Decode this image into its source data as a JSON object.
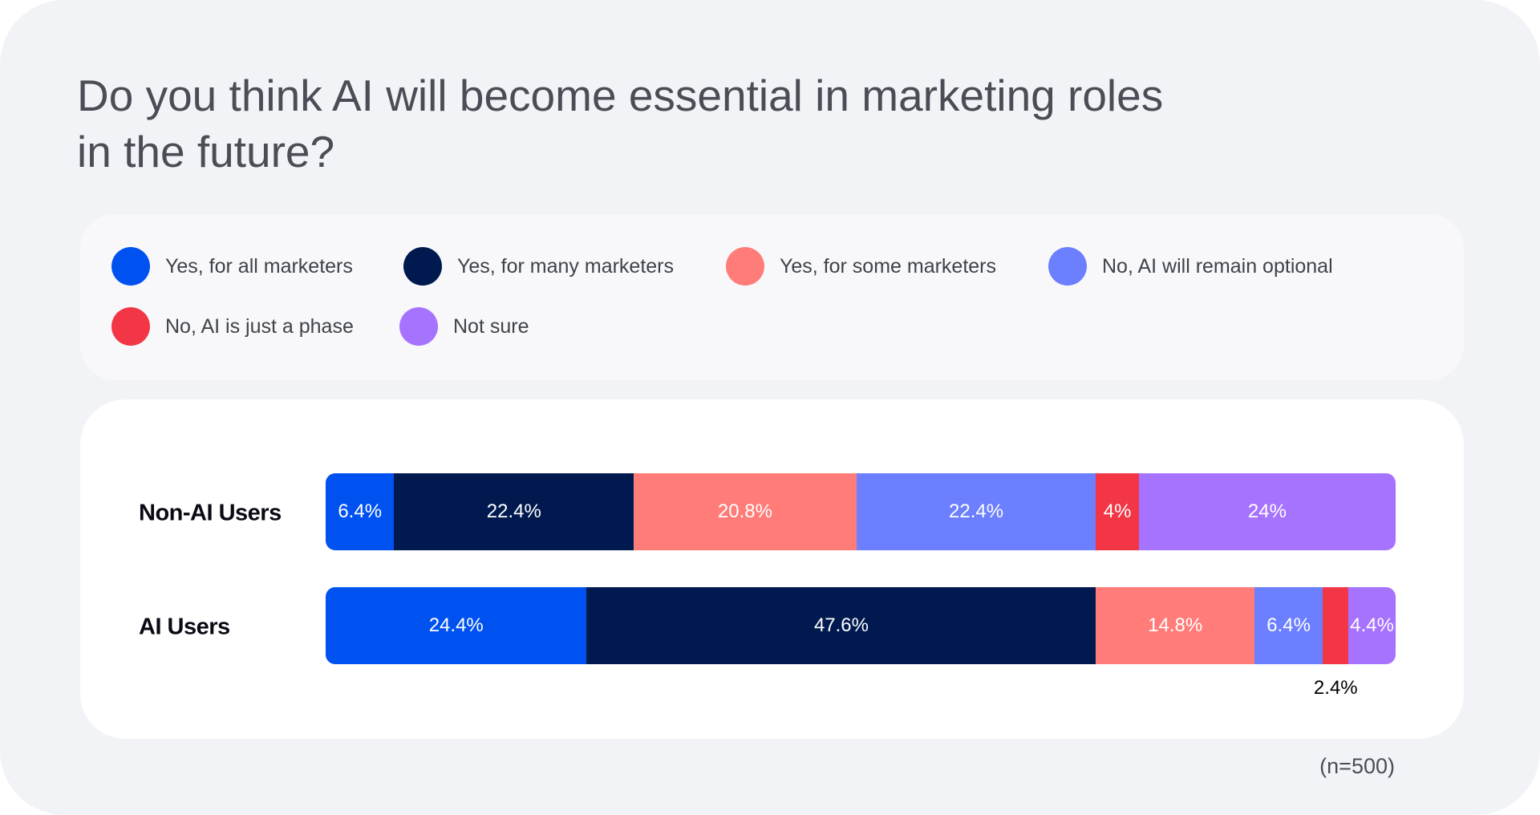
{
  "chart_data": {
    "type": "bar",
    "orientation": "horizontal",
    "stacked": true,
    "title": "Do you think AI will become essential in marketing roles in the future?",
    "title_lines": [
      "Do you think AI will become essential in marketing roles",
      "in the future?"
    ],
    "categories": [
      "Non-AI Users",
      "AI Users"
    ],
    "series": [
      {
        "name": "Yes, for all marketers",
        "color": "#0052f0",
        "values": [
          6.4,
          24.4
        ],
        "labels": [
          "6.4%",
          "24.4%"
        ]
      },
      {
        "name": "Yes, for many marketers",
        "color": "#001a50",
        "values": [
          22.4,
          47.6
        ],
        "labels": [
          "22.4%",
          "47.6%"
        ]
      },
      {
        "name": "Yes, for some marketers",
        "color": "#ff7c78",
        "values": [
          20.8,
          14.8
        ],
        "labels": [
          "20.8%",
          "14.8%"
        ]
      },
      {
        "name": "No, AI will remain optional",
        "color": "#6b7fff",
        "values": [
          22.4,
          6.4
        ],
        "labels": [
          "22.4%",
          "6.4%"
        ]
      },
      {
        "name": "No, AI is just a phase",
        "color": "#f23645",
        "values": [
          4,
          2.4
        ],
        "labels": [
          "4%",
          "2.4%"
        ],
        "outside_label": [
          false,
          true
        ]
      },
      {
        "name": "Not sure",
        "color": "#a673ff",
        "values": [
          24,
          4.4
        ],
        "labels": [
          "24%",
          "4.4%"
        ]
      }
    ],
    "xlim": [
      0,
      100
    ],
    "grid": false,
    "legend_position": "top",
    "note": "(n=500)"
  }
}
